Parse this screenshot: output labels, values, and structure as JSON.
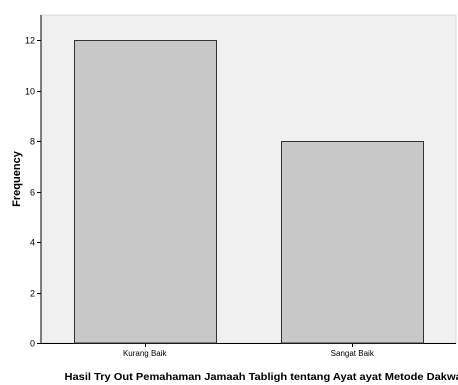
{
  "chart_data": {
    "type": "bar",
    "categories": [
      "Kurang Baik",
      "Sangat Baik"
    ],
    "values": [
      12,
      8
    ],
    "xlabel": "Hasil Try Out Pemahaman Jamaah Tabligh tentang Ayat ayat Metode Dakwah",
    "ylabel": "Frequency",
    "ylim": [
      0,
      13
    ],
    "yticks": [
      0,
      2,
      4,
      6,
      8,
      10,
      12
    ],
    "grid": false,
    "colors": {
      "plot_background": "#f0f0f0",
      "bar_fill": "#c8c8c8",
      "bar_stroke": "#333333",
      "axis": "#000000",
      "text": "#000000"
    }
  }
}
